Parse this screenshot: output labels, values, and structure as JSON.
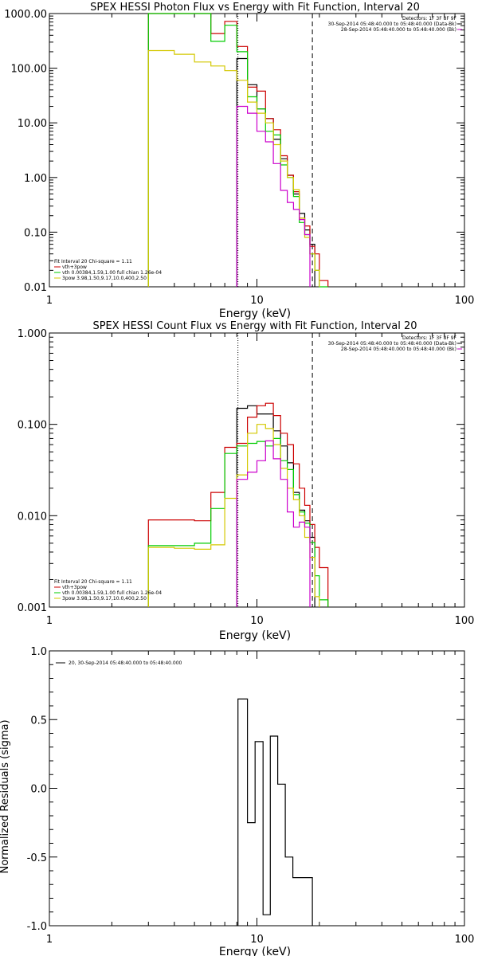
{
  "chart_data": [
    {
      "type": "line",
      "title": "SPEX HESSI Photon Flux vs Energy with Fit Function, Interval 20",
      "xlabel": "Energy (keV)",
      "ylabel": "",
      "xscale": "log",
      "yscale": "log",
      "xlim": [
        1,
        100
      ],
      "ylim": [
        0.01,
        1000
      ],
      "x_tick_labels": [
        "1",
        "10",
        "100"
      ],
      "y_tick_labels": [
        "0.01",
        "0.10",
        "1.00",
        "10.00",
        "100.00",
        "1000.00"
      ],
      "info_lines": [
        "Detectors: 1F 3F 8F 9F",
        "30-Sep-2014 05:48:40.000 to 05:48:40.000 (Data-Bk)",
        "28-Sep-2014 05:48:40.000 to 05:48:40.000 (Bk)"
      ],
      "info_colors": [
        "#000000",
        "#000000",
        "#cc00cc"
      ],
      "fit_lines": [
        "Fit Interval 20   Chi-square = 1.11",
        "vth+3pow",
        "vth 0.00384,1.59,1.00  full chian 1.26e-04",
        "3pow 3.98,1.50,9.17,10.0,400,2.50"
      ],
      "fit_colors": [
        "#000000",
        "#cc0000",
        "#00cc00",
        "#d4c800"
      ],
      "vlines": [
        {
          "x": 8.1,
          "style": "dotted"
        },
        {
          "x": 18.5,
          "style": "dashed"
        }
      ],
      "series": [
        {
          "color": "#000000",
          "edges": [
            8.0,
            9.0,
            10.0,
            11.0,
            12.0,
            13.0,
            14.0,
            15.0,
            16.0,
            17.0,
            18.0,
            19.0
          ],
          "values": [
            150,
            50,
            18,
            12,
            5.0,
            2.2,
            1.1,
            0.5,
            0.22,
            0.11,
            0.06
          ]
        },
        {
          "color": "#cc0000",
          "edges": [
            3.0,
            4.0,
            5.0,
            6.0,
            7.0,
            8.0,
            9.0,
            10.0,
            11.0,
            12.0,
            13.0,
            14.0,
            15.0,
            16.0,
            17.0,
            18.0,
            19.0,
            20.0,
            22.0
          ],
          "values": [
            1200,
            1200,
            1200,
            430,
            720,
            250,
            45,
            38,
            12,
            7.5,
            2.5,
            1.1,
            0.55,
            0.18,
            0.13,
            0.055,
            0.04,
            0.013
          ]
        },
        {
          "color": "#00cc00",
          "edges": [
            3.0,
            4.0,
            5.0,
            6.0,
            7.0,
            8.0,
            9.0,
            10.0,
            11.0,
            12.0,
            13.0,
            14.0,
            15.0,
            16.0,
            17.0,
            18.0,
            19.0,
            20.0,
            22.0
          ],
          "values": [
            1200,
            1200,
            1200,
            310,
            610,
            200,
            30,
            18,
            7.0,
            6.0,
            1.7,
            1.0,
            0.45,
            0.15,
            0.09,
            0.04,
            0.02,
            0.01
          ]
        },
        {
          "color": "#d4c800",
          "edges": [
            3.0,
            4.0,
            5.0,
            6.0,
            7.0,
            8.0,
            9.0,
            10.0,
            11.0,
            12.0,
            13.0,
            14.0,
            15.0,
            16.0,
            17.0,
            18.0,
            19.0,
            20.0
          ],
          "values": [
            210,
            180,
            130,
            110,
            90,
            60,
            24,
            15,
            10,
            4.0,
            2.0,
            1.0,
            0.6,
            0.18,
            0.08,
            0.04,
            0.02
          ]
        },
        {
          "color": "#cc00cc",
          "edges": [
            8.0,
            9.0,
            10.0,
            11.0,
            12.0,
            13.0,
            14.0,
            15.0,
            16.0,
            17.0,
            18.0
          ],
          "values": [
            20,
            15,
            7.0,
            4.5,
            1.8,
            0.58,
            0.35,
            0.26,
            0.17,
            0.09
          ]
        }
      ]
    },
    {
      "type": "line",
      "title": "SPEX HESSI Count Flux vs Energy with Fit Function, Interval 20",
      "xlabel": "Energy (keV)",
      "ylabel": "",
      "xscale": "log",
      "yscale": "log",
      "xlim": [
        1,
        100
      ],
      "ylim": [
        0.001,
        1
      ],
      "x_tick_labels": [
        "1",
        "10",
        "100"
      ],
      "y_tick_labels": [
        "0.001",
        "0.010",
        "0.100",
        "1.000"
      ],
      "info_lines": [
        "Detectors: 1F 3F 8F 9F",
        "30-Sep-2014 05:48:40.000 to 05:48:40.000 (Data-Bk)",
        "28-Sep-2014 05:48:40.000 to 05:48:40.000 (Bk)"
      ],
      "info_colors": [
        "#000000",
        "#000000",
        "#cc00cc"
      ],
      "fit_lines": [
        "Fit Interval 20   Chi-square = 1.11",
        "vth+3pow",
        "vth 0.00384,1.59,1.00  full chian 1.26e-04",
        "3pow 3.98,1.50,9.17,10.0,400,2.50"
      ],
      "fit_colors": [
        "#000000",
        "#cc0000",
        "#00cc00",
        "#d4c800"
      ],
      "vlines": [
        {
          "x": 8.1,
          "style": "dotted"
        },
        {
          "x": 18.5,
          "style": "dashed"
        }
      ],
      "series": [
        {
          "color": "#000000",
          "edges": [
            8.0,
            9.0,
            10.0,
            11.0,
            12.0,
            13.0,
            14.0,
            15.0,
            16.0,
            17.0,
            18.0,
            19.0
          ],
          "values": [
            0.15,
            0.16,
            0.13,
            0.13,
            0.085,
            0.058,
            0.038,
            0.018,
            0.0115,
            0.0088,
            0.0058
          ]
        },
        {
          "color": "#cc0000",
          "edges": [
            3.0,
            4.0,
            5.0,
            6.0,
            7.0,
            8.0,
            9.0,
            10.0,
            11.0,
            12.0,
            13.0,
            14.0,
            15.0,
            16.0,
            17.0,
            18.0,
            19.0,
            20.0,
            22.0
          ],
          "values": [
            0.009,
            0.009,
            0.0088,
            0.018,
            0.056,
            0.062,
            0.12,
            0.16,
            0.17,
            0.125,
            0.08,
            0.06,
            0.037,
            0.02,
            0.013,
            0.008,
            0.0045,
            0.0027
          ]
        },
        {
          "color": "#00cc00",
          "edges": [
            3.0,
            4.0,
            5.0,
            6.0,
            7.0,
            8.0,
            9.0,
            10.0,
            11.0,
            12.0,
            13.0,
            14.0,
            15.0,
            16.0,
            17.0,
            18.0,
            19.0,
            20.0,
            22.0
          ],
          "values": [
            0.0047,
            0.0047,
            0.005,
            0.012,
            0.048,
            0.058,
            0.062,
            0.065,
            0.058,
            0.07,
            0.04,
            0.032,
            0.017,
            0.011,
            0.0083,
            0.0051,
            0.0022,
            0.0012
          ]
        },
        {
          "color": "#d4c800",
          "edges": [
            3.0,
            4.0,
            5.0,
            6.0,
            7.0,
            8.0,
            9.0,
            10.0,
            11.0,
            12.0,
            13.0,
            14.0,
            15.0,
            16.0,
            17.0,
            18.0,
            19.0,
            20.0
          ],
          "values": [
            0.0045,
            0.0044,
            0.0043,
            0.0048,
            0.0155,
            0.028,
            0.08,
            0.1,
            0.09,
            0.06,
            0.033,
            0.02,
            0.015,
            0.01,
            0.0058,
            0.0035,
            0.0013
          ]
        },
        {
          "color": "#cc00cc",
          "edges": [
            8.0,
            9.0,
            10.0,
            11.0,
            12.0,
            13.0,
            14.0,
            15.0,
            16.0,
            17.0,
            18.0
          ],
          "values": [
            0.025,
            0.03,
            0.04,
            0.066,
            0.042,
            0.025,
            0.011,
            0.0075,
            0.0085,
            0.0075
          ]
        }
      ]
    },
    {
      "type": "line",
      "title": "",
      "xlabel": "Energy (keV)",
      "ylabel": "Normalized Residuals (sigma)",
      "xscale": "log",
      "yscale": "linear",
      "xlim": [
        1,
        100
      ],
      "ylim": [
        -1.0,
        1.0
      ],
      "x_tick_labels": [
        "1",
        "10",
        "100"
      ],
      "y_tick_labels": [
        "-1.0",
        "-0.5",
        "0.0",
        "0.5",
        "1.0"
      ],
      "legend_label": "20, 30-Sep-2014 05:48:40.000 to 05:48:40.000",
      "series": [
        {
          "color": "#000000",
          "edges": [
            8.1,
            9.0,
            9.8,
            10.7,
            11.6,
            12.6,
            13.7,
            14.9,
            16.2,
            17.6,
            18.5
          ],
          "values": [
            0.65,
            -0.25,
            0.34,
            -0.92,
            0.38,
            0.03,
            -0.5,
            -0.65,
            -0.65,
            -0.65
          ]
        }
      ]
    }
  ]
}
